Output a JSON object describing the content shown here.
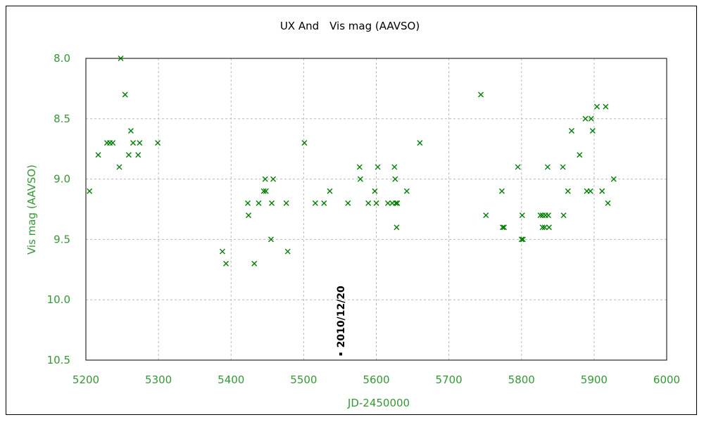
{
  "chart_data": {
    "type": "scatter",
    "title": "UX And　Vis mag (AAVSO)",
    "xlabel": "JD-2450000",
    "ylabel": "Vis mag (AAVSO)",
    "xlim": [
      5200,
      6000
    ],
    "ylim": [
      10.5,
      8.0
    ],
    "y_inverted": true,
    "xticks": [
      "5200",
      "5300",
      "5400",
      "5500",
      "5600",
      "5700",
      "5800",
      "5900",
      "6000"
    ],
    "xtick_values": [
      5200,
      5300,
      5400,
      5500,
      5600,
      5700,
      5800,
      5900,
      6000
    ],
    "yticks": [
      "8.0",
      "8.5",
      "9.0",
      "9.5",
      "10.0",
      "10.5"
    ],
    "ytick_values": [
      8.0,
      8.5,
      9.0,
      9.5,
      10.0,
      10.5
    ],
    "grid": true,
    "legend": "none",
    "colors": {
      "marker": "#008000",
      "axis_text": "#339933",
      "grid": "#bbbbbb",
      "annotation": "#000000"
    },
    "marker": "x",
    "series": [
      {
        "points": [
          [
            5205,
            9.1
          ],
          [
            5217,
            8.8
          ],
          [
            5229,
            8.7
          ],
          [
            5233,
            8.7
          ],
          [
            5237,
            8.7
          ],
          [
            5246,
            8.9
          ],
          [
            5248,
            8.0
          ],
          [
            5254,
            8.3
          ],
          [
            5259,
            8.8
          ],
          [
            5262,
            8.6
          ],
          [
            5265,
            8.7
          ],
          [
            5272,
            8.8
          ],
          [
            5274,
            8.7
          ],
          [
            5299,
            8.7
          ],
          [
            5388,
            9.6
          ],
          [
            5393,
            9.7
          ],
          [
            5423,
            9.2
          ],
          [
            5424,
            9.3
          ],
          [
            5432,
            9.7
          ],
          [
            5438,
            9.2
          ],
          [
            5445,
            9.1
          ],
          [
            5447,
            9.0
          ],
          [
            5448,
            9.1
          ],
          [
            5455,
            9.5
          ],
          [
            5456,
            9.2
          ],
          [
            5458,
            9.0
          ],
          [
            5476,
            9.2
          ],
          [
            5478,
            9.6
          ],
          [
            5501,
            8.7
          ],
          [
            5516,
            9.2
          ],
          [
            5528,
            9.2
          ],
          [
            5536,
            9.1
          ],
          [
            5561,
            9.2
          ],
          [
            5577,
            8.9
          ],
          [
            5578,
            9.0
          ],
          [
            5589,
            9.2
          ],
          [
            5598,
            9.1
          ],
          [
            5600,
            9.2
          ],
          [
            5602,
            8.9
          ],
          [
            5616,
            9.2
          ],
          [
            5622,
            9.2
          ],
          [
            5625,
            8.9
          ],
          [
            5626,
            9.0
          ],
          [
            5627,
            9.2
          ],
          [
            5629,
            9.2
          ],
          [
            5628,
            9.4
          ],
          [
            5642,
            9.1
          ],
          [
            5660,
            8.7
          ],
          [
            5744,
            8.3
          ],
          [
            5751,
            9.3
          ],
          [
            5773,
            9.1
          ],
          [
            5774,
            9.4
          ],
          [
            5776,
            9.4
          ],
          [
            5795,
            8.9
          ],
          [
            5800,
            9.5
          ],
          [
            5801,
            9.3
          ],
          [
            5802,
            9.5
          ],
          [
            5826,
            9.3
          ],
          [
            5829,
            9.3
          ],
          [
            5829,
            9.4
          ],
          [
            5832,
            9.4
          ],
          [
            5833,
            9.3
          ],
          [
            5836,
            8.9
          ],
          [
            5837,
            9.3
          ],
          [
            5838,
            9.4
          ],
          [
            5857,
            8.9
          ],
          [
            5858,
            9.3
          ],
          [
            5864,
            9.1
          ],
          [
            5869,
            8.6
          ],
          [
            5880,
            8.8
          ],
          [
            5888,
            8.5
          ],
          [
            5890,
            9.1
          ],
          [
            5895,
            9.1
          ],
          [
            5896,
            8.5
          ],
          [
            5898,
            8.6
          ],
          [
            5904,
            8.4
          ],
          [
            5911,
            9.1
          ],
          [
            5916,
            8.4
          ],
          [
            5919,
            9.2
          ],
          [
            5927,
            9.0
          ]
        ]
      }
    ],
    "annotations": [
      {
        "text": "2010/12/20",
        "x": 5551,
        "y": 10.45,
        "marker": "square"
      }
    ]
  }
}
